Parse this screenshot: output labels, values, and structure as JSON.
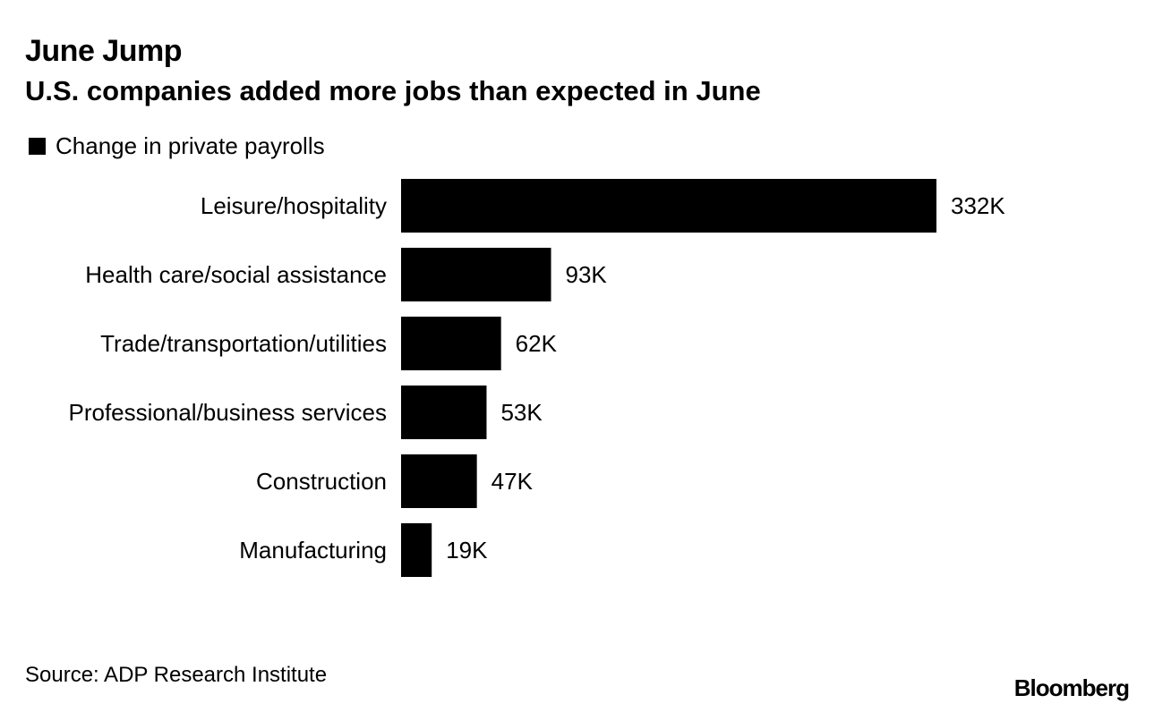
{
  "chart_data": {
    "type": "bar",
    "orientation": "horizontal",
    "title": "June Jump",
    "subtitle": "U.S. companies added more jobs than expected in June",
    "legend": {
      "label": "Change in private payrolls",
      "color": "#000000",
      "placement": "top-left"
    },
    "categories": [
      "Leisure/hospitality",
      "Health care/social assistance",
      "Trade/transportation/utilities",
      "Professional/business services",
      "Construction",
      "Manufacturing"
    ],
    "values": [
      332,
      93,
      62,
      53,
      47,
      19
    ],
    "value_labels": [
      "332K",
      "93K",
      "62K",
      "53K",
      "47K",
      "19K"
    ],
    "unit": "K",
    "xlim": [
      0,
      332
    ],
    "grid": false,
    "bar_color": "#000000",
    "source": "Source: ADP Research Institute"
  },
  "branding": {
    "label": "Bloomberg"
  }
}
